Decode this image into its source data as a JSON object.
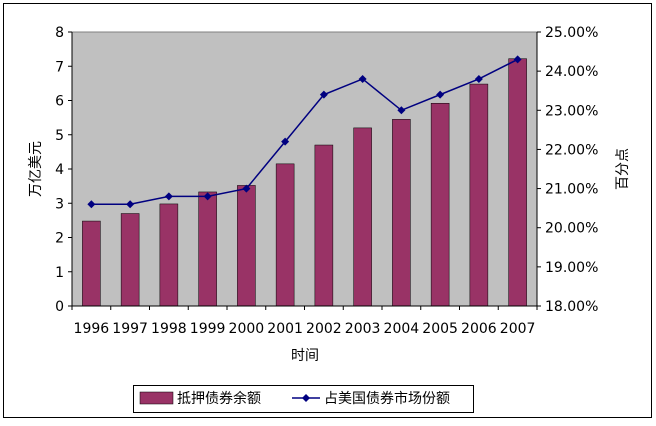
{
  "chart_data": {
    "type": "bar",
    "categories": [
      "1996",
      "1997",
      "1998",
      "1999",
      "2000",
      "2001",
      "2002",
      "2003",
      "2004",
      "2005",
      "2006",
      "2007"
    ],
    "series": [
      {
        "name": "抵押债券余额",
        "type": "bar",
        "axis": "left",
        "color": "#993366",
        "values": [
          2.48,
          2.7,
          2.98,
          3.33,
          3.52,
          4.15,
          4.7,
          5.2,
          5.45,
          5.92,
          6.48,
          7.22
        ]
      },
      {
        "name": "占美国债券市场份额",
        "type": "line",
        "axis": "right",
        "color": "#000080",
        "values": [
          20.6,
          20.6,
          20.8,
          20.8,
          21.0,
          22.2,
          23.4,
          23.8,
          23.0,
          23.4,
          23.8,
          24.3
        ]
      }
    ],
    "ylabel": "万亿美元",
    "y2label": "百分点",
    "xlabel": "时间",
    "ylim": [
      0,
      8
    ],
    "y2lim": [
      18,
      25
    ],
    "yticks": [
      "0",
      "1",
      "2",
      "3",
      "4",
      "5",
      "6",
      "7",
      "8"
    ],
    "y2ticks": [
      "18.00%",
      "19.00%",
      "20.00%",
      "21.00%",
      "22.00%",
      "23.00%",
      "24.00%",
      "25.00%"
    ],
    "plot_background": "#c0c0c0",
    "grid": false,
    "legend_position": "bottom"
  }
}
